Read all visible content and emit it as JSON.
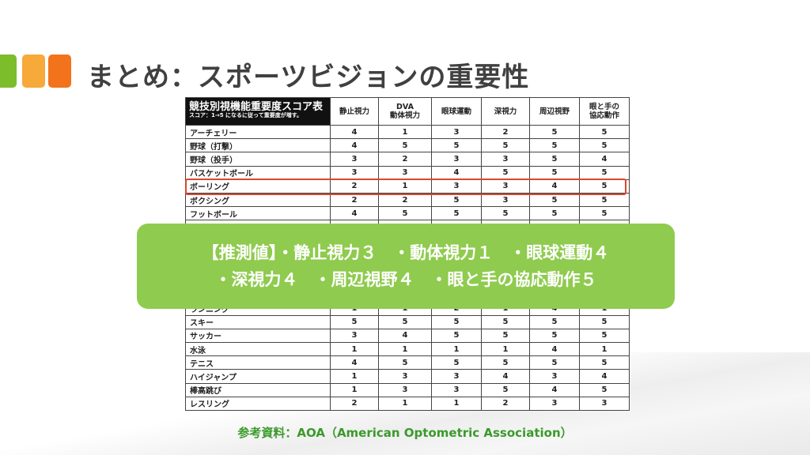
{
  "colors": {
    "sq1": "#7cbd2b",
    "sq2": "#f7a93a",
    "sq3": "#f2731c",
    "overlay": "#8fcb4e",
    "highlight": "#d9482b",
    "source": "#3a9a2a"
  },
  "title": "まとめ：スポーツビジョンの重要性",
  "table": {
    "title": "競技別視機能重要度スコア表",
    "subtitle": "スコア：1→5 になるに従って重要度が増す。",
    "columns": [
      "静止視力",
      "DVA\n動体視力",
      "眼球運動",
      "深視力",
      "周辺視野",
      "眼と手の\n協応動作"
    ],
    "rows": [
      {
        "name": "アーチェリー",
        "values": [
          "4",
          "1",
          "3",
          "2",
          "5",
          "5"
        ]
      },
      {
        "name": "野球（打撃）",
        "values": [
          "4",
          "5",
          "5",
          "5",
          "5",
          "5"
        ]
      },
      {
        "name": "野球（投手）",
        "values": [
          "3",
          "2",
          "3",
          "3",
          "5",
          "4"
        ]
      },
      {
        "name": "バスケットボール",
        "values": [
          "3",
          "3",
          "4",
          "5",
          "5",
          "5"
        ]
      },
      {
        "name": "ボーリング",
        "values": [
          "2",
          "1",
          "3",
          "3",
          "4",
          "5"
        ]
      },
      {
        "name": "ボクシング",
        "values": [
          "2",
          "2",
          "5",
          "3",
          "5",
          "5"
        ]
      },
      {
        "name": "フットボール",
        "values": [
          "4",
          "5",
          "5",
          "5",
          "5",
          "5"
        ]
      },
      {
        "name": "ランニング",
        "values": [
          "1",
          "1",
          "2",
          "1",
          "4",
          "1"
        ]
      },
      {
        "name": "スキー",
        "values": [
          "5",
          "5",
          "5",
          "5",
          "5",
          "5"
        ]
      },
      {
        "name": "サッカー",
        "values": [
          "3",
          "4",
          "5",
          "5",
          "5",
          "5"
        ]
      },
      {
        "name": "水泳",
        "values": [
          "1",
          "1",
          "1",
          "1",
          "4",
          "1"
        ]
      },
      {
        "name": "テニス",
        "values": [
          "4",
          "5",
          "5",
          "5",
          "5",
          "5"
        ]
      },
      {
        "name": "ハイジャンプ",
        "values": [
          "1",
          "3",
          "3",
          "4",
          "3",
          "4"
        ]
      },
      {
        "name": "棒高跳び",
        "values": [
          "1",
          "3",
          "3",
          "5",
          "4",
          "5"
        ]
      },
      {
        "name": "レスリング",
        "values": [
          "2",
          "1",
          "1",
          "2",
          "3",
          "3"
        ]
      }
    ]
  },
  "overlay": {
    "line1": "【推測値】・静止視力３　・動体視力１　・眼球運動４",
    "line2": "・深視力４　・周辺視野４　・眼と手の協応動作５"
  },
  "source": "参考資料：AOA（American Optometric Association）"
}
